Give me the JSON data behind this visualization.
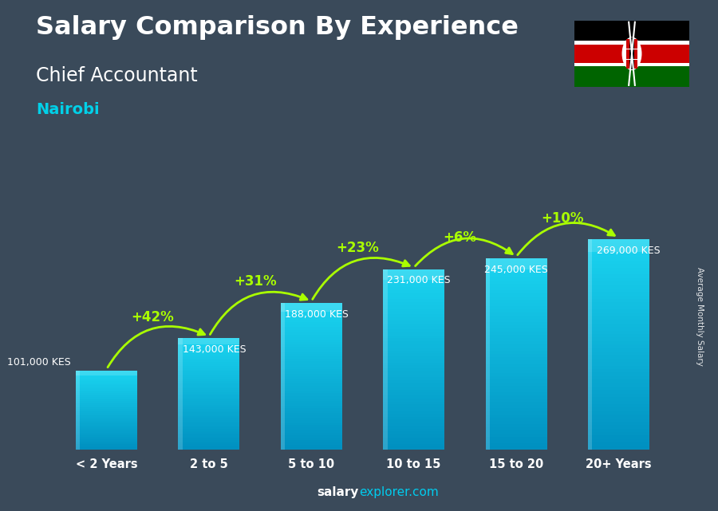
{
  "title_line1": "Salary Comparison By Experience",
  "title_line2": "Chief Accountant",
  "title_line3": "Nairobi",
  "categories": [
    "< 2 Years",
    "2 to 5",
    "5 to 10",
    "10 to 15",
    "15 to 20",
    "20+ Years"
  ],
  "values": [
    101000,
    143000,
    188000,
    231000,
    245000,
    269000
  ],
  "value_labels": [
    "101,000 KES",
    "143,000 KES",
    "188,000 KES",
    "231,000 KES",
    "245,000 KES",
    "269,000 KES"
  ],
  "pct_labels": [
    "+42%",
    "+31%",
    "+23%",
    "+6%",
    "+10%"
  ],
  "bar_color_top": "#1ad4f0",
  "bar_color_bottom": "#0090c0",
  "bg_color": "#3a4a5a",
  "title_color": "#ffffff",
  "subtitle_color": "#ffffff",
  "city_color": "#00d0e8",
  "label_color": "#ffffff",
  "pct_color": "#aaff00",
  "arrow_color": "#aaff00",
  "ylabel": "Average Monthly Salary",
  "footer_bold": "salary",
  "footer_normal": "explorer.com",
  "ylim": [
    0,
    340000
  ],
  "bar_width": 0.6,
  "flag_stripes": [
    "#006400",
    "#cc0000",
    "#000000"
  ],
  "flag_white": "#ffffff"
}
